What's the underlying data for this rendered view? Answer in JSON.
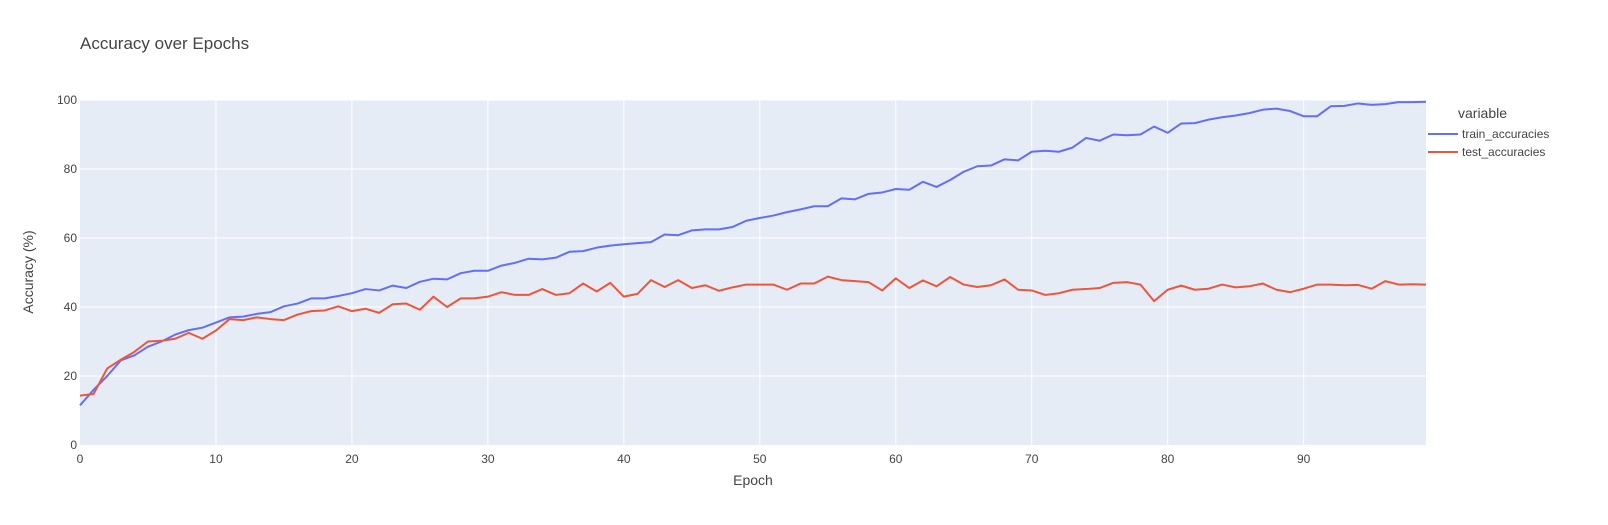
{
  "chart_data": {
    "type": "line",
    "title": "Accuracy over Epochs",
    "xlabel": "Epoch",
    "ylabel": "Accuracy (%)",
    "xlim": [
      0,
      99
    ],
    "ylim": [
      0,
      100
    ],
    "x_ticks": [
      0,
      10,
      20,
      30,
      40,
      50,
      60,
      70,
      80,
      90
    ],
    "y_ticks": [
      0,
      20,
      40,
      60,
      80,
      100
    ],
    "grid": true,
    "legend_title": "variable",
    "legend_position": "right",
    "x": [
      0,
      1,
      2,
      3,
      4,
      5,
      6,
      7,
      8,
      9,
      10,
      11,
      12,
      13,
      14,
      15,
      16,
      17,
      18,
      19,
      20,
      21,
      22,
      23,
      24,
      25,
      26,
      27,
      28,
      29,
      30,
      31,
      32,
      33,
      34,
      35,
      36,
      37,
      38,
      39,
      40,
      41,
      42,
      43,
      44,
      45,
      46,
      47,
      48,
      49,
      50,
      51,
      52,
      53,
      54,
      55,
      56,
      57,
      58,
      59,
      60,
      61,
      62,
      63,
      64,
      65,
      66,
      67,
      68,
      69,
      70,
      71,
      72,
      73,
      74,
      75,
      76,
      77,
      78,
      79,
      80,
      81,
      82,
      83,
      84,
      85,
      86,
      87,
      88,
      89,
      90,
      91,
      92,
      93,
      94,
      95,
      96,
      97,
      98,
      99
    ],
    "series": [
      {
        "name": "train_accuracies",
        "color": "#636efa",
        "values": [
          11.5,
          16,
          20,
          24.5,
          26,
          28.5,
          30,
          32,
          33.3,
          34,
          35.5,
          37,
          37.2,
          38,
          38.5,
          40.2,
          41,
          42.5,
          42.5,
          43.2,
          44,
          45.2,
          44.8,
          46.2,
          45.5,
          47.3,
          48.2,
          48,
          49.8,
          50.5,
          50.5,
          52,
          52.8,
          54,
          53.8,
          54.3,
          56,
          56.2,
          57.2,
          57.8,
          58.2,
          58.5,
          58.8,
          61,
          60.8,
          62.2,
          62.5,
          62.5,
          63.2,
          65,
          65.8,
          66.5,
          67.5,
          68.3,
          69.2,
          69.2,
          71.5,
          71.2,
          72.8,
          73.2,
          74.2,
          74,
          76.3,
          74.8,
          76.8,
          79.2,
          80.8,
          81,
          82.8,
          82.5,
          85,
          85.3,
          85,
          86.2,
          89,
          88.2,
          90,
          89.8,
          90,
          92.3,
          90.5,
          93.2,
          93.3,
          94.3,
          95,
          95.5,
          96.2,
          97.2,
          97.5,
          96.8,
          95.3,
          95.3,
          98.2,
          98.3,
          99,
          98.6,
          98.8,
          99.4,
          99.4,
          99.5
        ]
      },
      {
        "name": "test_accuracies",
        "color": "#ef553b",
        "values": [
          14.3,
          14.8,
          22.2,
          24.7,
          27,
          30,
          30.2,
          30.8,
          32.5,
          30.8,
          33.2,
          36.5,
          36.2,
          37,
          36.5,
          36.2,
          37.8,
          38.8,
          39,
          40.2,
          38.8,
          39.5,
          38.3,
          40.8,
          41,
          39.2,
          43,
          40,
          42.5,
          42.5,
          43,
          44.3,
          43.5,
          43.5,
          45.2,
          43.5,
          44,
          46.8,
          44.5,
          47,
          43,
          43.8,
          47.8,
          45.8,
          47.8,
          45.5,
          46.3,
          44.7,
          45.7,
          46.5,
          46.5,
          46.5,
          45,
          46.8,
          46.8,
          48.8,
          47.8,
          47.5,
          47.2,
          44.8,
          48.3,
          45.5,
          47.7,
          46,
          48.7,
          46.5,
          45.8,
          46.3,
          48,
          45,
          44.8,
          43.5,
          44,
          45,
          45.2,
          45.5,
          47,
          47.2,
          46.5,
          41.7,
          45,
          46.2,
          45,
          45.3,
          46.5,
          45.7,
          46,
          46.8,
          45,
          44.3,
          45.3,
          46.5,
          46.5,
          46.3,
          46.4,
          45.3,
          47.5,
          46.5,
          46.6,
          46.5
        ]
      }
    ]
  }
}
